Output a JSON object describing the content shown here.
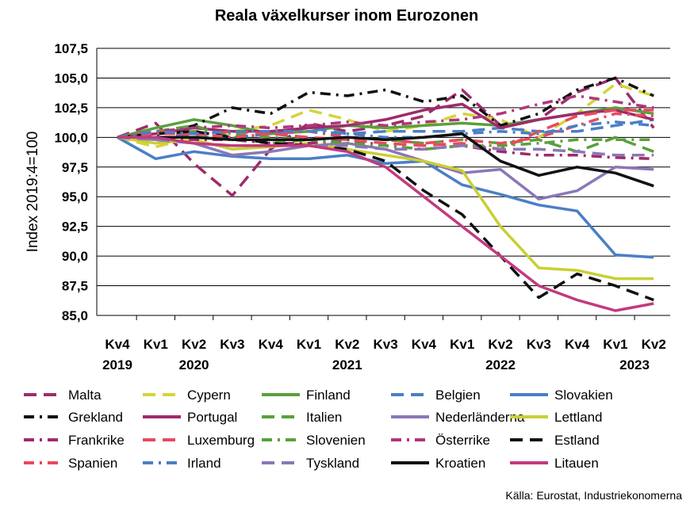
{
  "chart_data": {
    "type": "line",
    "title": "Reala växelkurser inom Eurozonen",
    "ylabel": "Index 2019:4=100",
    "xlabel": "",
    "source": "Källa: Eurostat, Industriekonomerna",
    "ylim": [
      85.0,
      107.5
    ],
    "yticks": [
      "85,0",
      "87,5",
      "90,0",
      "92,5",
      "95,0",
      "97,5",
      "100,0",
      "102,5",
      "105,0",
      "107,5"
    ],
    "categories": [
      "Kv4",
      "Kv1",
      "Kv2",
      "Kv3",
      "Kv4",
      "Kv1",
      "Kv2",
      "Kv3",
      "Kv4",
      "Kv1",
      "Kv2",
      "Kv3",
      "Kv4",
      "Kv1",
      "Kv2"
    ],
    "years": [
      {
        "label": "2019",
        "index": 0
      },
      {
        "label": "2020",
        "index": 2
      },
      {
        "label": "2021",
        "index": 6
      },
      {
        "label": "2022",
        "index": 10
      },
      {
        "label": "2023",
        "index": 13.5
      }
    ],
    "grid": true,
    "legend_position": "bottom",
    "series": [
      {
        "name": "Malta",
        "color": "#9e2b6a",
        "dash": "long",
        "values": [
          100,
          101.2,
          97.8,
          95.1,
          99.0,
          101.2,
          100.5,
          101.0,
          101.8,
          104.0,
          101.0,
          101.5,
          103.8,
          105.0,
          100.8
        ]
      },
      {
        "name": "Cypern",
        "color": "#d4d43a",
        "dash": "long",
        "values": [
          100,
          99.2,
          100.0,
          100.5,
          101.0,
          102.3,
          101.5,
          100.5,
          101.0,
          102.0,
          101.5,
          100.0,
          102.0,
          104.5,
          103.5
        ]
      },
      {
        "name": "Finland",
        "color": "#5aa03c",
        "dash": "solid",
        "values": [
          100,
          100.8,
          101.5,
          101.0,
          100.3,
          100.5,
          101.0,
          100.8,
          101.0,
          101.2,
          101.0,
          101.5,
          102.0,
          102.5,
          102.0
        ]
      },
      {
        "name": "Belgien",
        "color": "#4a7fc6",
        "dash": "long",
        "values": [
          100,
          100.5,
          100.0,
          100.0,
          100.3,
          100.8,
          100.3,
          100.5,
          100.5,
          100.5,
          100.8,
          100.5,
          100.5,
          101.0,
          101.5
        ]
      },
      {
        "name": "Slovakien",
        "color": "#4a7fc6",
        "dash": "solid",
        "values": [
          100,
          98.2,
          98.8,
          98.4,
          98.2,
          98.2,
          98.5,
          97.8,
          98.0,
          96.0,
          95.2,
          94.3,
          93.8,
          90.1,
          89.9
        ]
      },
      {
        "name": "Grekland",
        "color": "#111111",
        "dash": "dashdot",
        "values": [
          100,
          100.2,
          101.0,
          102.5,
          102.0,
          103.8,
          103.5,
          104.0,
          103.0,
          103.5,
          101.0,
          102.0,
          104.0,
          105.0,
          103.5
        ]
      },
      {
        "name": "Portugal",
        "color": "#9e2b6a",
        "dash": "solid",
        "values": [
          100,
          100.3,
          100.8,
          100.5,
          100.5,
          100.8,
          101.0,
          101.5,
          102.3,
          102.8,
          100.8,
          101.5,
          102.0,
          102.3,
          101.5
        ]
      },
      {
        "name": "Italien",
        "color": "#5aa03c",
        "dash": "long",
        "values": [
          100,
          100.5,
          101.0,
          100.0,
          99.5,
          99.8,
          100.0,
          99.8,
          99.5,
          99.8,
          99.5,
          99.8,
          98.8,
          100.0,
          98.8
        ]
      },
      {
        "name": "Nederländerna",
        "color": "#8a77b8",
        "dash": "solid",
        "values": [
          100,
          99.8,
          99.5,
          98.5,
          98.8,
          99.3,
          99.5,
          99.0,
          98.0,
          97.0,
          97.3,
          94.8,
          95.5,
          97.5,
          97.3
        ]
      },
      {
        "name": "Lettland",
        "color": "#c9cf33",
        "dash": "solid",
        "values": [
          100,
          99.5,
          99.8,
          99.0,
          99.2,
          99.5,
          99.0,
          98.5,
          98.0,
          97.2,
          92.5,
          89.0,
          88.8,
          88.1,
          88.1
        ]
      },
      {
        "name": "Frankrike",
        "color": "#9e2b6a",
        "dash": "dashdot",
        "values": [
          100,
          100.0,
          99.8,
          99.8,
          99.5,
          99.5,
          99.8,
          99.3,
          99.0,
          99.3,
          98.8,
          98.5,
          98.5,
          98.3,
          98.2
        ]
      },
      {
        "name": "Luxemburg",
        "color": "#e84a5f",
        "dash": "long",
        "values": [
          100,
          100.5,
          100.2,
          100.5,
          100.3,
          100.0,
          99.8,
          99.5,
          99.3,
          99.5,
          99.0,
          100.5,
          101.8,
          102.3,
          102.3
        ]
      },
      {
        "name": "Slovenien",
        "color": "#5aa03c",
        "dash": "dashdot",
        "values": [
          100,
          100.3,
          100.5,
          100.3,
          100.0,
          99.8,
          99.5,
          99.3,
          99.0,
          99.3,
          99.3,
          99.5,
          99.8,
          99.8,
          99.8
        ]
      },
      {
        "name": "Österrike",
        "color": "#b0357d",
        "dash": "dashdot",
        "values": [
          100,
          100.5,
          100.8,
          101.0,
          100.8,
          101.0,
          101.3,
          101.0,
          101.3,
          101.5,
          102.0,
          102.8,
          103.5,
          103.0,
          102.5
        ]
      },
      {
        "name": "Estland",
        "color": "#111111",
        "dash": "long",
        "values": [
          100,
          100.3,
          100.5,
          100.0,
          99.5,
          99.3,
          99.0,
          98.0,
          95.5,
          93.5,
          90.0,
          86.5,
          88.5,
          87.5,
          86.3
        ]
      },
      {
        "name": "Spanien",
        "color": "#e84a5f",
        "dash": "dashdot",
        "values": [
          100,
          100.3,
          100.3,
          100.0,
          100.3,
          100.5,
          100.0,
          99.8,
          99.5,
          99.8,
          99.5,
          100.0,
          101.0,
          102.0,
          101.8
        ]
      },
      {
        "name": "Irland",
        "color": "#4a7fc6",
        "dash": "dashdot",
        "values": [
          100,
          100.5,
          100.3,
          100.5,
          100.5,
          100.5,
          100.3,
          100.0,
          100.0,
          100.3,
          100.5,
          100.3,
          101.0,
          101.3,
          101.0
        ]
      },
      {
        "name": "Tyskland",
        "color": "#8a77b8",
        "dash": "long",
        "values": [
          100,
          99.8,
          99.5,
          99.3,
          99.3,
          99.3,
          99.3,
          99.0,
          99.0,
          99.3,
          99.0,
          99.0,
          98.8,
          98.5,
          98.5
        ]
      },
      {
        "name": "Kroatien",
        "color": "#111111",
        "dash": "solid",
        "values": [
          100,
          100.0,
          100.0,
          99.8,
          99.8,
          99.8,
          100.0,
          99.8,
          100.0,
          100.3,
          98.0,
          96.8,
          97.5,
          97.0,
          95.9
        ]
      },
      {
        "name": "Litauen",
        "color": "#c23a7e",
        "dash": "solid",
        "values": [
          100,
          100.0,
          99.5,
          99.3,
          99.3,
          99.3,
          98.8,
          97.5,
          95.0,
          92.5,
          90.0,
          87.5,
          86.3,
          85.4,
          86.0
        ]
      }
    ]
  }
}
